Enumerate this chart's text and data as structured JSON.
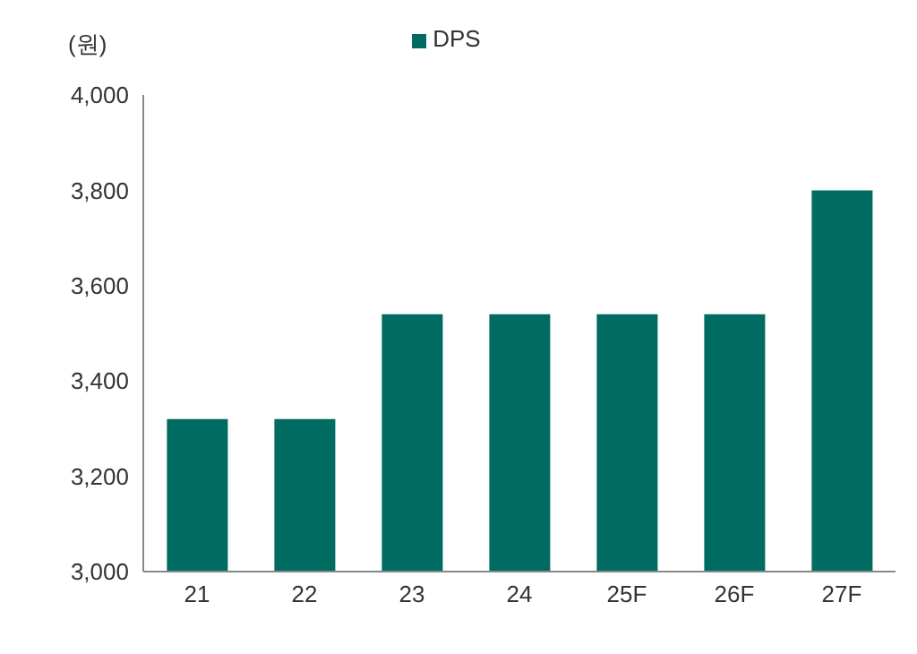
{
  "chart_data": {
    "type": "bar",
    "ylabel": "(원)",
    "categories": [
      "21",
      "22",
      "23",
      "24",
      "25F",
      "26F",
      "27F"
    ],
    "series": [
      {
        "name": "DPS",
        "color": "#006b60",
        "values": [
          3320,
          3320,
          3540,
          3540,
          3540,
          3540,
          3800
        ]
      }
    ],
    "ylim": [
      3000,
      4000
    ],
    "yticks": [
      {
        "value": 3000,
        "label": "3,000"
      },
      {
        "value": 3200,
        "label": "3,200"
      },
      {
        "value": 3400,
        "label": "3,400"
      },
      {
        "value": 3600,
        "label": "3,600"
      },
      {
        "value": 3800,
        "label": "3,800"
      },
      {
        "value": 4000,
        "label": "4,000"
      }
    ],
    "grid": false,
    "legend": "top"
  }
}
